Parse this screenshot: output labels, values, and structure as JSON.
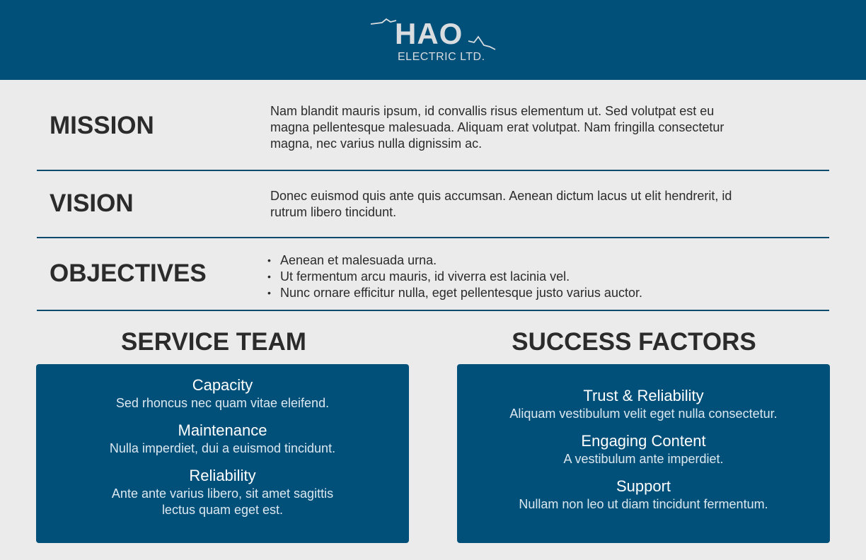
{
  "header": {
    "logo_main": "HAO",
    "logo_sub": "ELECTRIC LTD."
  },
  "mission": {
    "label": "MISSION",
    "text": "Nam blandit mauris ipsum, id convallis risus elementum ut. Sed volutpat est eu magna pellentesque malesuada. Aliquam erat volutpat. Nam fringilla consectetur magna, nec varius nulla dignissim ac."
  },
  "vision": {
    "label": "VISION",
    "text": "Donec euismod quis ante quis accumsan. Aenean dictum lacus ut elit hendrerit, id rutrum libero tincidunt."
  },
  "objectives": {
    "label": "OBJECTIVES",
    "items": [
      "Aenean et malesuada urna.",
      "Ut fermentum arcu mauris, id viverra est lacinia vel.",
      "Nunc ornare efficitur nulla, eget pellentesque justo varius auctor."
    ]
  },
  "service_team": {
    "title": "SERVICE TEAM",
    "items": [
      {
        "title": "Capacity",
        "desc": "Sed rhoncus nec quam vitae eleifend."
      },
      {
        "title": "Maintenance",
        "desc": "Nulla imperdiet, dui a euismod tincidunt."
      },
      {
        "title": "Reliability",
        "desc": "Ante ante varius libero, sit amet sagittis lectus quam eget est."
      }
    ]
  },
  "success_factors": {
    "title": "SUCCESS FACTORS",
    "items": [
      {
        "title": "Trust & Reliability",
        "desc": "Aliquam vestibulum velit eget nulla consectetur."
      },
      {
        "title": "Engaging Content",
        "desc": "A vestibulum ante imperdiet."
      },
      {
        "title": "Support",
        "desc": "Nullam non leo ut diam tincidunt fermentum."
      }
    ]
  },
  "colors": {
    "brand_blue": "#00507a",
    "background": "#ebebeb",
    "text": "#2b2b2b"
  }
}
